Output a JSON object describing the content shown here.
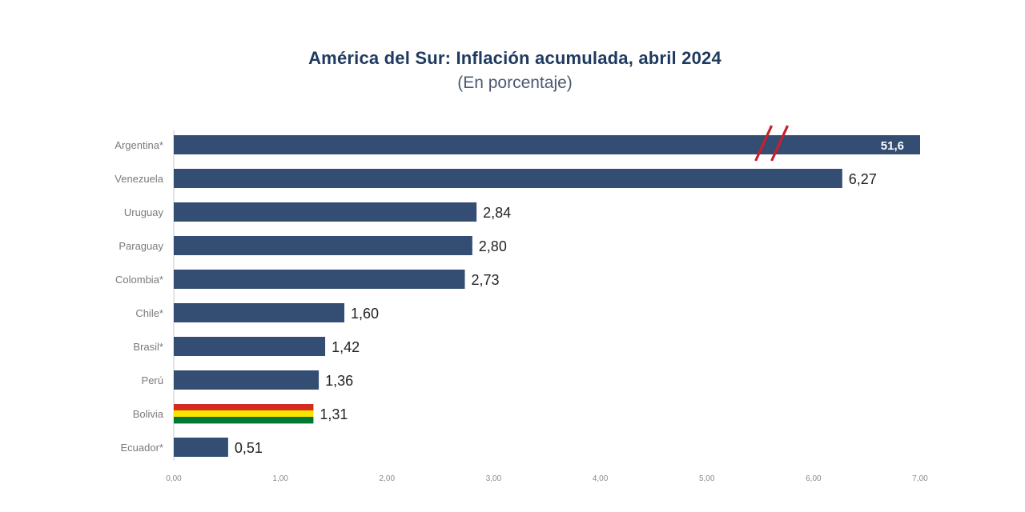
{
  "chart_data": {
    "type": "bar",
    "orientation": "horizontal",
    "title": "América del Sur: Inflación acumulada, abril 2024",
    "subtitle": "(En porcentaje)",
    "categories": [
      "Argentina*",
      "Venezuela",
      "Uruguay",
      "Paraguay",
      "Colombia*",
      "Chile*",
      "Brasil*",
      "Perú",
      "Bolivia",
      "Ecuador*"
    ],
    "values": [
      51.6,
      6.27,
      2.84,
      2.8,
      2.73,
      1.6,
      1.42,
      1.36,
      1.31,
      0.51
    ],
    "value_labels": [
      "51,6",
      "6,27",
      "2,84",
      "2,80",
      "2,73",
      "1,60",
      "1,42",
      "1,36",
      "1,31",
      "0,51"
    ],
    "xlim": [
      0,
      7
    ],
    "xticks": [
      "0,00",
      "1,00",
      "2,00",
      "3,00",
      "4,00",
      "5,00",
      "6,00",
      "7,00"
    ],
    "axis_break": "Argentina*",
    "highlighted_category": "Bolivia",
    "grid": false,
    "legend": "none",
    "colors": {
      "bar": "#344d73",
      "axis_break": "#c8202a",
      "highlight_stripes": [
        "#d52b1e",
        "#f9e300",
        "#007934"
      ],
      "category_text": "#7a7a7a",
      "value_text": "#222222",
      "title_text": "#1f3a60"
    }
  }
}
